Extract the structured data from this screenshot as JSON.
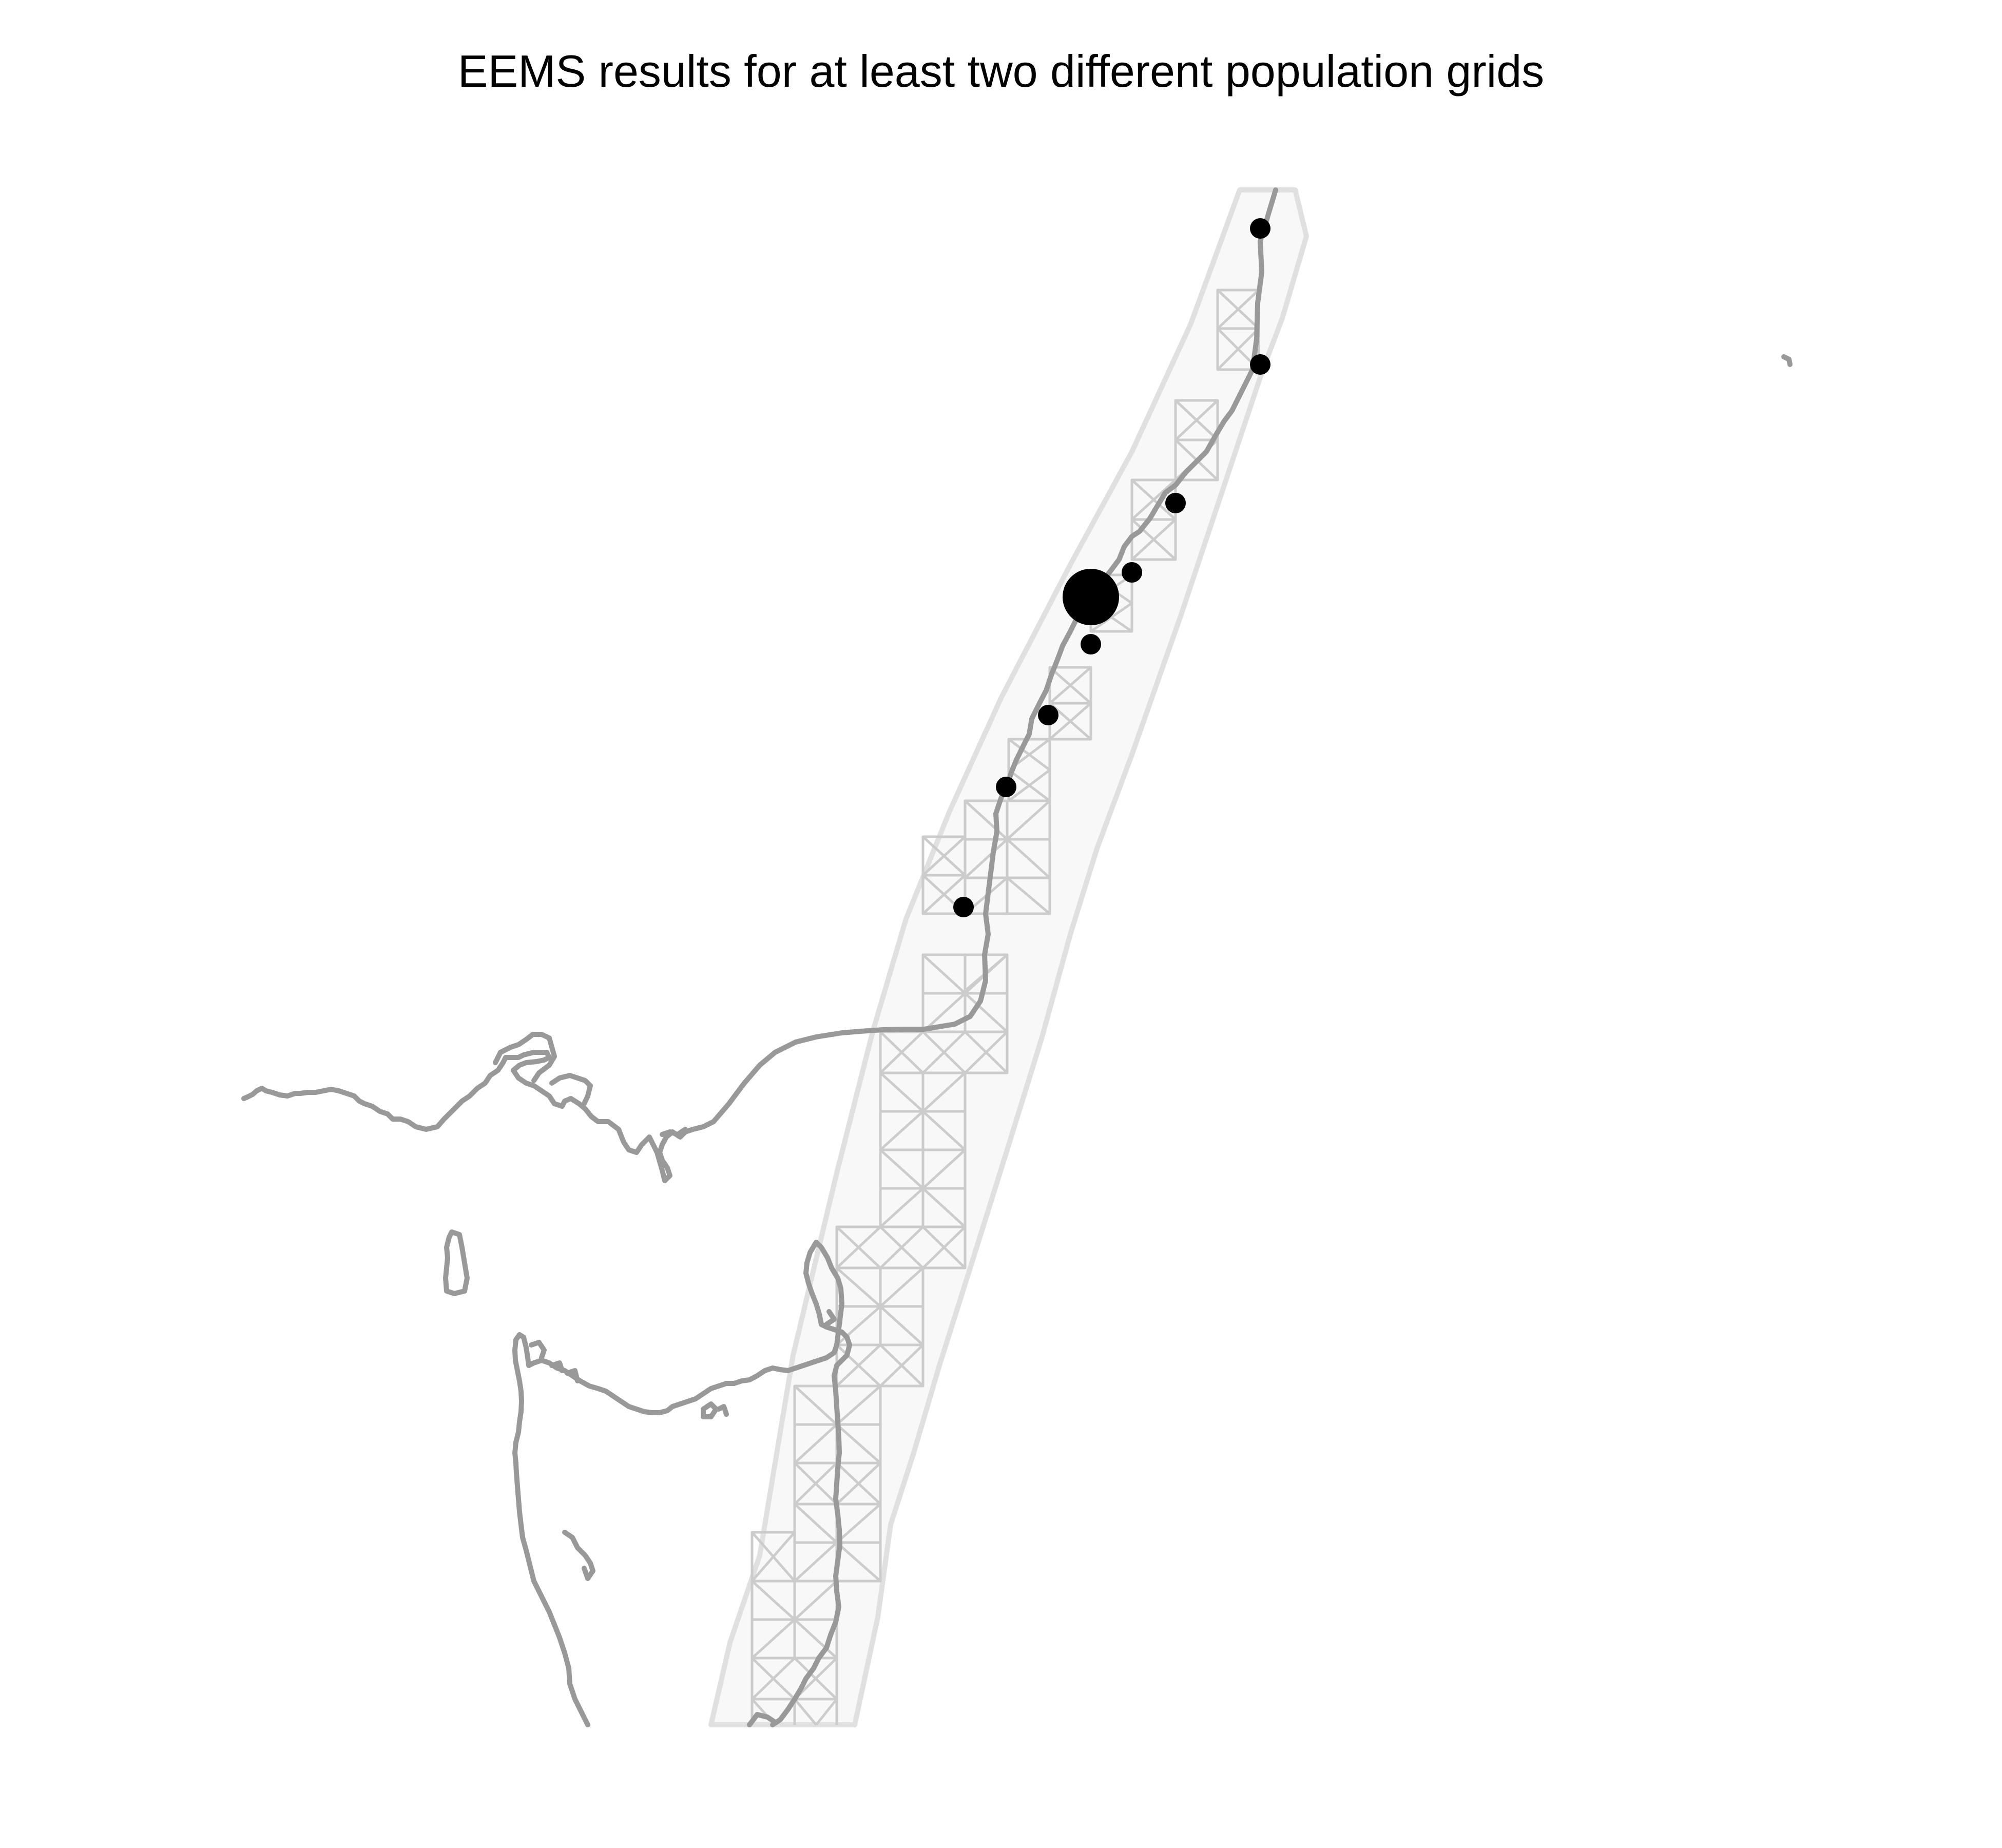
{
  "title": "EEMS results for at least two different population grids",
  "colors": {
    "background": "#ffffff",
    "coastline": "#999999",
    "habitat_fill": "#f8f8f8",
    "habitat_outline": "#e0e0e0",
    "grid_lines": "#cccccc",
    "demes": "#000000"
  },
  "legend": null,
  "layers": [
    {
      "name": "habitat polygon",
      "kind": "polygon"
    },
    {
      "name": "population grid",
      "kind": "triangular lattice"
    },
    {
      "name": "coastline",
      "kind": "polyline"
    },
    {
      "name": "observed demes",
      "kind": "points"
    }
  ],
  "demes": [
    {
      "id": 1,
      "relative_size": 1
    },
    {
      "id": 2,
      "relative_size": 1
    },
    {
      "id": 3,
      "relative_size": 1
    },
    {
      "id": 4,
      "relative_size": 1
    },
    {
      "id": 5,
      "relative_size": 4
    },
    {
      "id": 6,
      "relative_size": 1
    },
    {
      "id": 7,
      "relative_size": 1
    },
    {
      "id": 8,
      "relative_size": 1
    },
    {
      "id": 9,
      "relative_size": 1
    }
  ]
}
